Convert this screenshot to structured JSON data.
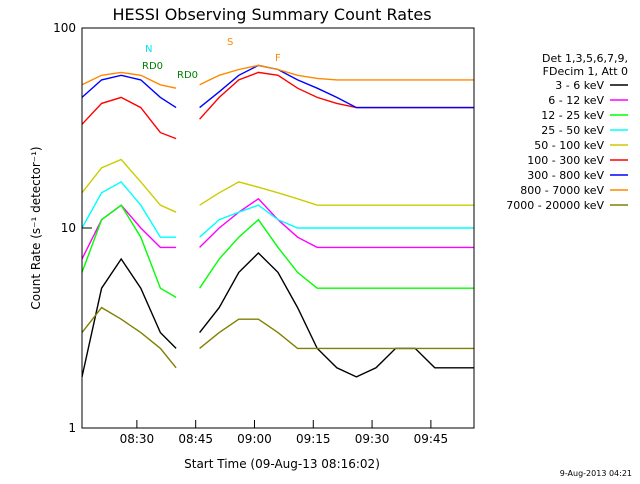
{
  "chart_data": {
    "type": "line",
    "title": "HESSI Observing Summary Count Rates",
    "xlabel": "Start Time (09-Aug-13 08:16:02)",
    "ylabel": "Count Rate (s⁻¹ detector⁻¹)",
    "y_scale": "log",
    "ylim": [
      1,
      100
    ],
    "xlim_minutes_after_0816": [
      0,
      100
    ],
    "x_ticks": [
      {
        "label": "08:30",
        "minute": 14
      },
      {
        "label": "08:45",
        "minute": 29
      },
      {
        "label": "09:00",
        "minute": 44
      },
      {
        "label": "09:15",
        "minute": 59
      },
      {
        "label": "09:30",
        "minute": 74
      },
      {
        "label": "09:45",
        "minute": 89
      }
    ],
    "y_ticks": [
      {
        "label": "1",
        "value": 1
      },
      {
        "label": "10",
        "value": 10
      },
      {
        "label": "100",
        "value": 100
      }
    ],
    "legend": {
      "placement": "right",
      "header": [
        "Det 1,3,5,6,7,9,",
        "FDecim 1, Att 0"
      ],
      "entries": [
        {
          "label": "3 - 6 keV",
          "color": "#000000"
        },
        {
          "label": "6 - 12 keV",
          "color": "#ff00ff"
        },
        {
          "label": "12 - 25 keV",
          "color": "#00ff00"
        },
        {
          "label": "25 - 50 keV",
          "color": "#00ffff"
        },
        {
          "label": "50 - 100 keV",
          "color": "#cccc00"
        },
        {
          "label": "100 - 300 keV",
          "color": "#ff0000"
        },
        {
          "label": "300 - 800 keV",
          "color": "#0000ff"
        },
        {
          "label": "800 - 7000 keV",
          "color": "#ff8800"
        },
        {
          "label": "7000 - 20000 keV",
          "color": "#808000"
        }
      ]
    },
    "annotations": [
      {
        "label": "N",
        "color": "#00e5ee"
      },
      {
        "label": "RD0",
        "color": "#008000"
      },
      {
        "label": "RD0",
        "color": "#008000"
      },
      {
        "label": "S",
        "color": "#ff8800"
      },
      {
        "label": "F",
        "color": "#ff8800"
      }
    ],
    "segments": [
      {
        "start": 0,
        "end": 24
      },
      {
        "start": 30,
        "end": 100
      }
    ],
    "series": [
      {
        "name": "3 - 6 keV",
        "color": "#000000",
        "x": [
          0,
          5,
          10,
          15,
          20,
          24,
          30,
          35,
          40,
          45,
          50,
          55,
          60,
          65,
          70,
          75,
          80,
          85,
          90,
          95,
          100
        ],
        "y": [
          1.8,
          5,
          7,
          5,
          3,
          2.5,
          3,
          4,
          6,
          7.5,
          6,
          4,
          2.5,
          2,
          1.8,
          2,
          2.5,
          2.5,
          2,
          2,
          2
        ]
      },
      {
        "name": "6 - 12 keV",
        "color": "#ff00ff",
        "x": [
          0,
          5,
          10,
          15,
          20,
          24,
          30,
          35,
          40,
          45,
          50,
          55,
          60,
          65,
          70,
          75,
          80,
          85,
          90,
          95,
          100
        ],
        "y": [
          7,
          11,
          13,
          10,
          8,
          8,
          8,
          10,
          12,
          14,
          11,
          9,
          8,
          8,
          8,
          8,
          8,
          8,
          8,
          8,
          8
        ]
      },
      {
        "name": "12 - 25 keV",
        "color": "#00ff00",
        "x": [
          0,
          5,
          10,
          15,
          20,
          24,
          30,
          35,
          40,
          45,
          50,
          55,
          60,
          65,
          70,
          75,
          80,
          85,
          90,
          95,
          100
        ],
        "y": [
          6,
          11,
          13,
          9,
          5,
          4.5,
          5,
          7,
          9,
          11,
          8,
          6,
          5,
          5,
          5,
          5,
          5,
          5,
          5,
          5,
          5
        ]
      },
      {
        "name": "25 - 50 keV",
        "color": "#00ffff",
        "x": [
          0,
          5,
          10,
          15,
          20,
          24,
          30,
          35,
          40,
          45,
          50,
          55,
          60,
          65,
          70,
          75,
          80,
          85,
          90,
          95,
          100
        ],
        "y": [
          10,
          15,
          17,
          13,
          9,
          9,
          9,
          11,
          12,
          13,
          11,
          10,
          10,
          10,
          10,
          10,
          10,
          10,
          10,
          10,
          10
        ]
      },
      {
        "name": "50 - 100 keV",
        "color": "#cccc00",
        "x": [
          0,
          5,
          10,
          15,
          20,
          24,
          30,
          35,
          40,
          45,
          50,
          55,
          60,
          65,
          70,
          75,
          80,
          85,
          90,
          95,
          100
        ],
        "y": [
          15,
          20,
          22,
          17,
          13,
          12,
          13,
          15,
          17,
          16,
          15,
          14,
          13,
          13,
          13,
          13,
          13,
          13,
          13,
          13,
          13
        ]
      },
      {
        "name": "100 - 300 keV",
        "color": "#ff0000",
        "x": [
          0,
          5,
          10,
          15,
          20,
          24,
          30,
          35,
          40,
          45,
          50,
          55,
          60,
          65,
          70,
          75,
          80,
          85,
          90,
          95,
          100
        ],
        "y": [
          33,
          42,
          45,
          40,
          30,
          28,
          35,
          45,
          55,
          60,
          58,
          50,
          45,
          42,
          40,
          40,
          40,
          40,
          40,
          40,
          40
        ]
      },
      {
        "name": "300 - 800 keV",
        "color": "#0000ff",
        "x": [
          0,
          5,
          10,
          15,
          20,
          24,
          30,
          35,
          40,
          45,
          50,
          55,
          60,
          65,
          70,
          75,
          80,
          85,
          90,
          95,
          100
        ],
        "y": [
          45,
          55,
          58,
          55,
          45,
          40,
          40,
          48,
          58,
          65,
          62,
          55,
          50,
          45,
          40,
          40,
          40,
          40,
          40,
          40,
          40
        ]
      },
      {
        "name": "800 - 7000 keV",
        "color": "#ff8800",
        "x": [
          0,
          5,
          10,
          15,
          20,
          24,
          30,
          35,
          40,
          45,
          50,
          55,
          60,
          65,
          70,
          75,
          80,
          85,
          90,
          95,
          100
        ],
        "y": [
          52,
          58,
          60,
          58,
          52,
          50,
          52,
          58,
          62,
          65,
          62,
          58,
          56,
          55,
          55,
          55,
          55,
          55,
          55,
          55,
          55
        ]
      },
      {
        "name": "7000 - 20000 keV",
        "color": "#808000",
        "x": [
          0,
          5,
          10,
          15,
          20,
          24,
          30,
          35,
          40,
          45,
          50,
          55,
          60,
          65,
          70,
          75,
          80,
          85,
          90,
          95,
          100
        ],
        "y": [
          3,
          4,
          3.5,
          3,
          2.5,
          2,
          2.5,
          3,
          3.5,
          3.5,
          3,
          2.5,
          2.5,
          2.5,
          2.5,
          2.5,
          2.5,
          2.5,
          2.5,
          2.5,
          2.5
        ]
      }
    ],
    "footer_timestamp": "9-Aug-2013 04:21"
  }
}
